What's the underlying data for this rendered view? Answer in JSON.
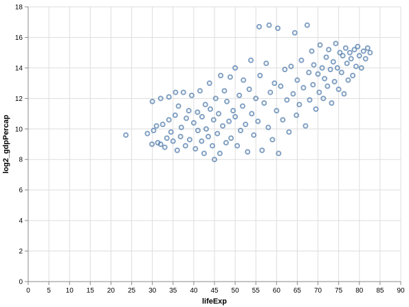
{
  "chart_data": {
    "type": "scatter",
    "xlabel": "lifeExp",
    "ylabel": "log2_gdpPercap",
    "xlim": [
      0,
      90
    ],
    "ylim": [
      0,
      18
    ],
    "x_ticks": [
      0,
      5,
      10,
      15,
      20,
      25,
      30,
      35,
      40,
      45,
      50,
      55,
      60,
      65,
      70,
      75,
      80,
      85,
      90
    ],
    "y_ticks": [
      0,
      2,
      4,
      6,
      8,
      10,
      12,
      14,
      16,
      18
    ],
    "grid": true,
    "marker": "hollow-circle",
    "point_color": "#4c78a8",
    "series": [
      {
        "points": [
          [
            23.6,
            9.6
          ],
          [
            28.8,
            9.7
          ],
          [
            29.9,
            9.0
          ],
          [
            30.0,
            11.8
          ],
          [
            30.3,
            9.9
          ],
          [
            31.0,
            10.2
          ],
          [
            31.3,
            9.1
          ],
          [
            32.0,
            9.0
          ],
          [
            32.0,
            12.0
          ],
          [
            32.5,
            10.3
          ],
          [
            33.0,
            8.8
          ],
          [
            33.5,
            9.4
          ],
          [
            34.0,
            10.6
          ],
          [
            34.0,
            12.1
          ],
          [
            34.5,
            9.8
          ],
          [
            35.0,
            9.2
          ],
          [
            35.5,
            10.9
          ],
          [
            35.6,
            12.4
          ],
          [
            36.0,
            8.6
          ],
          [
            36.3,
            11.5
          ],
          [
            36.8,
            9.5
          ],
          [
            37.0,
            10.1
          ],
          [
            37.5,
            12.4
          ],
          [
            38.0,
            8.9
          ],
          [
            38.2,
            10.7
          ],
          [
            38.8,
            11.2
          ],
          [
            39.0,
            9.3
          ],
          [
            39.5,
            12.2
          ],
          [
            40.0,
            10.4
          ],
          [
            40.4,
            8.7
          ],
          [
            40.9,
            11.1
          ],
          [
            41.0,
            9.9
          ],
          [
            41.5,
            12.5
          ],
          [
            41.9,
            9.2
          ],
          [
            42.0,
            10.8
          ],
          [
            42.5,
            8.4
          ],
          [
            42.8,
            11.6
          ],
          [
            43.0,
            10.0
          ],
          [
            43.5,
            9.5
          ],
          [
            43.8,
            13.0
          ],
          [
            44.0,
            11.3
          ],
          [
            44.5,
            8.9
          ],
          [
            44.8,
            10.6
          ],
          [
            45.0,
            8.0
          ],
          [
            45.3,
            12.0
          ],
          [
            45.7,
            9.7
          ],
          [
            46.0,
            11.0
          ],
          [
            46.3,
            8.4
          ],
          [
            46.5,
            13.5
          ],
          [
            47.0,
            10.2
          ],
          [
            47.4,
            12.5
          ],
          [
            47.8,
            9.1
          ],
          [
            48.0,
            11.8
          ],
          [
            48.5,
            10.5
          ],
          [
            48.8,
            13.4
          ],
          [
            49.0,
            9.4
          ],
          [
            49.5,
            11.2
          ],
          [
            50.0,
            10.8
          ],
          [
            50.0,
            14.0
          ],
          [
            50.5,
            8.9
          ],
          [
            51.0,
            12.2
          ],
          [
            51.3,
            9.9
          ],
          [
            51.8,
            11.5
          ],
          [
            52.0,
            13.2
          ],
          [
            52.5,
            10.3
          ],
          [
            53.0,
            8.5
          ],
          [
            53.4,
            12.6
          ],
          [
            53.8,
            14.5
          ],
          [
            54.0,
            11.0
          ],
          [
            54.5,
            9.6
          ],
          [
            55.0,
            12.0
          ],
          [
            55.5,
            10.5
          ],
          [
            55.8,
            16.7
          ],
          [
            56.0,
            13.5
          ],
          [
            56.5,
            8.6
          ],
          [
            57.0,
            11.7
          ],
          [
            57.5,
            14.3
          ],
          [
            58.0,
            10.1
          ],
          [
            58.2,
            16.8
          ],
          [
            58.5,
            12.4
          ],
          [
            59.0,
            9.3
          ],
          [
            59.5,
            13.0
          ],
          [
            60.0,
            11.2
          ],
          [
            60.3,
            16.6
          ],
          [
            60.5,
            8.4
          ],
          [
            61.0,
            12.8
          ],
          [
            61.5,
            10.6
          ],
          [
            62.0,
            13.9
          ],
          [
            62.5,
            11.9
          ],
          [
            63.0,
            9.8
          ],
          [
            63.5,
            14.1
          ],
          [
            64.0,
            12.3
          ],
          [
            64.4,
            16.3
          ],
          [
            64.8,
            10.9
          ],
          [
            65.0,
            13.2
          ],
          [
            65.5,
            11.6
          ],
          [
            66.0,
            14.5
          ],
          [
            66.5,
            12.7
          ],
          [
            67.0,
            10.2
          ],
          [
            67.4,
            16.8
          ],
          [
            67.8,
            13.7
          ],
          [
            68.0,
            11.9
          ],
          [
            68.5,
            15.1
          ],
          [
            68.8,
            12.9
          ],
          [
            69.0,
            14.2
          ],
          [
            69.5,
            11.3
          ],
          [
            70.0,
            13.6
          ],
          [
            70.3,
            12.4
          ],
          [
            70.5,
            15.5
          ],
          [
            71.0,
            14.0
          ],
          [
            71.3,
            12.0
          ],
          [
            71.6,
            13.3
          ],
          [
            72.0,
            14.7
          ],
          [
            72.3,
            12.8
          ],
          [
            72.6,
            15.2
          ],
          [
            73.0,
            13.9
          ],
          [
            73.3,
            11.7
          ],
          [
            73.7,
            14.4
          ],
          [
            74.0,
            13.1
          ],
          [
            74.3,
            15.6
          ],
          [
            74.7,
            14.0
          ],
          [
            75.0,
            12.6
          ],
          [
            75.3,
            15.0
          ],
          [
            75.7,
            13.7
          ],
          [
            76.0,
            14.8
          ],
          [
            76.3,
            12.3
          ],
          [
            76.7,
            15.3
          ],
          [
            77.0,
            14.3
          ],
          [
            77.3,
            13.2
          ],
          [
            77.7,
            15.0
          ],
          [
            78.0,
            14.6
          ],
          [
            78.4,
            13.5
          ],
          [
            78.8,
            15.2
          ],
          [
            79.2,
            14.1
          ],
          [
            79.6,
            15.4
          ],
          [
            80.0,
            14.8
          ],
          [
            80.5,
            14.0
          ],
          [
            81.0,
            15.1
          ],
          [
            81.5,
            14.6
          ],
          [
            82.0,
            15.3
          ],
          [
            82.6,
            15.0
          ]
        ]
      }
    ]
  }
}
